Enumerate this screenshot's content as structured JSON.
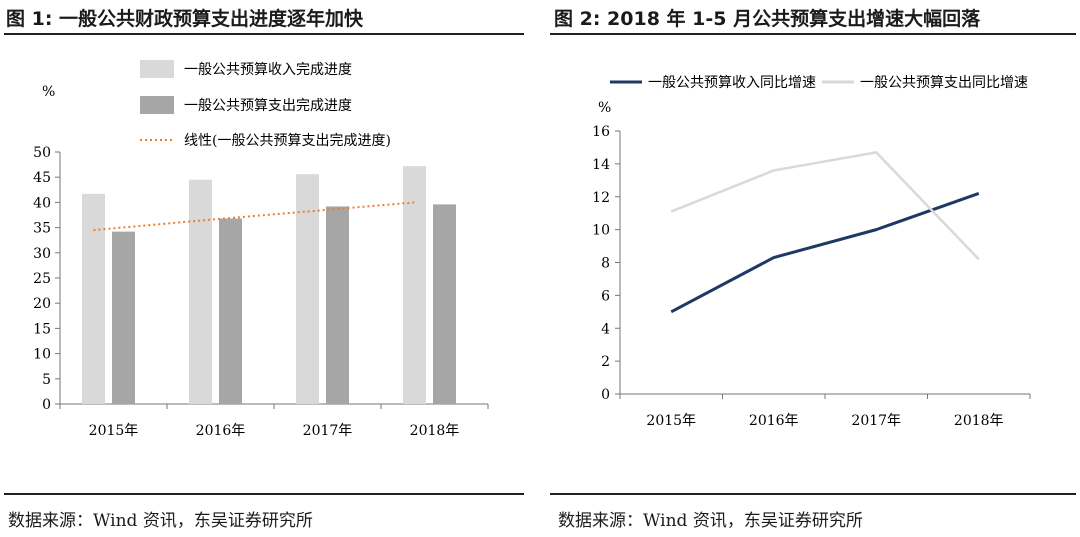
{
  "left_panel": {
    "title": "图 1:  一般公共财政预算支出进度逐年加快",
    "source": "数据来源：Wind 资讯，东吴证券研究所"
  },
  "right_panel": {
    "title": "图 2:  2018 年 1-5 月公共预算支出增速大幅回落",
    "source": "数据来源：Wind 资讯，东吴证券研究所"
  },
  "chart_data": [
    {
      "type": "bar",
      "ylabel": "%",
      "ylim": [
        0,
        50
      ],
      "yticks": [
        0,
        5,
        10,
        15,
        20,
        25,
        30,
        35,
        40,
        45,
        50
      ],
      "categories": [
        "2015年",
        "2016年",
        "2017年",
        "2018年"
      ],
      "series": [
        {
          "name": "一般公共预算收入完成进度",
          "type": "bar",
          "color": "#d9d9d9",
          "values": [
            41.7,
            44.5,
            45.6,
            47.2
          ]
        },
        {
          "name": "一般公共预算支出完成进度",
          "type": "bar",
          "color": "#a6a6a6",
          "values": [
            34.2,
            36.8,
            39.2,
            39.6
          ]
        },
        {
          "name": "线性(一般公共预算支出完成进度)",
          "type": "line-dotted",
          "color": "#ed7d31",
          "values": [
            34.5,
            36.4,
            38.2,
            40.0
          ]
        }
      ],
      "legend_position": "top"
    },
    {
      "type": "line",
      "ylabel": "%",
      "ylim": [
        0,
        16
      ],
      "yticks": [
        0,
        2,
        4,
        6,
        8,
        10,
        12,
        14,
        16
      ],
      "categories": [
        "2015年",
        "2016年",
        "2017年",
        "2018年"
      ],
      "series": [
        {
          "name": "一般公共预算收入同比增速",
          "color": "#1f3864",
          "values": [
            5.0,
            8.3,
            10.0,
            12.2
          ]
        },
        {
          "name": "一般公共预算支出同比增速",
          "color": "#d9d9d9",
          "values": [
            11.1,
            13.6,
            14.7,
            8.2
          ]
        }
      ],
      "legend_position": "top"
    }
  ]
}
